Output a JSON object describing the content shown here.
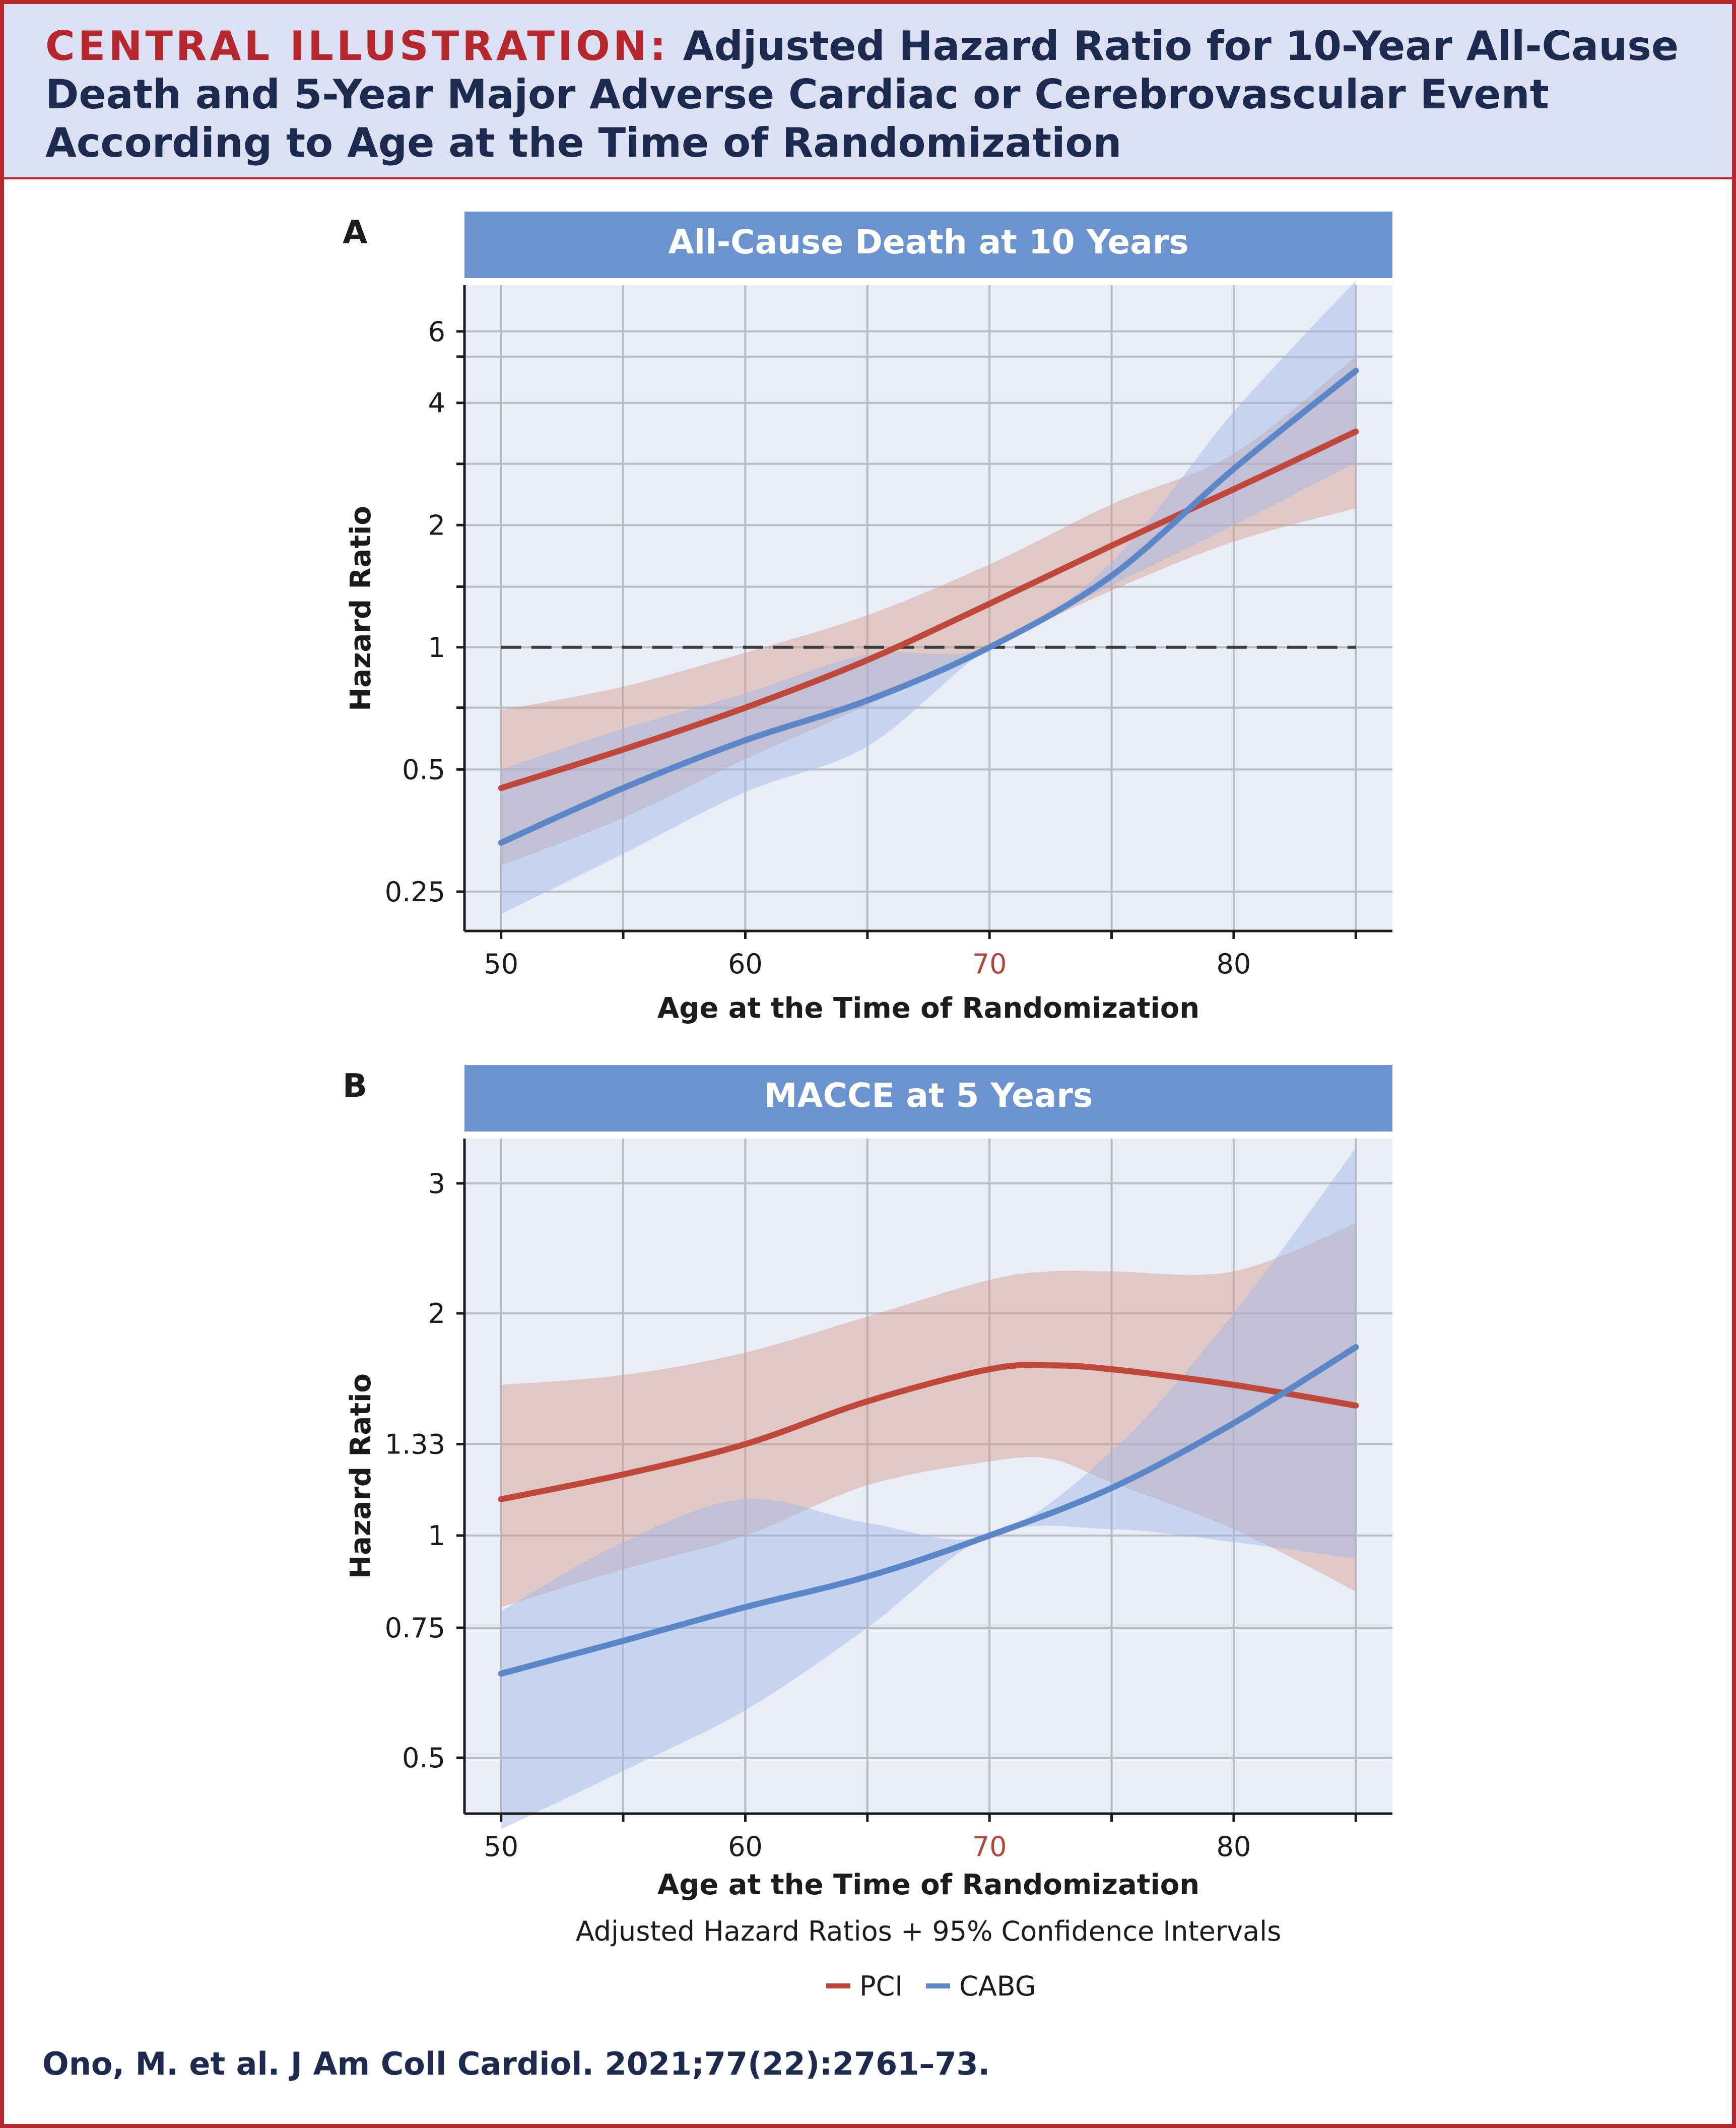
{
  "header": {
    "lead": "CENTRAL ILLUSTRATION:",
    "title": "Adjusted Hazard Ratio for 10-Year All-Cause Death and 5-Year Major Adverse Cardiac or Cerebrovascular Event According to Age at the Time of Randomization"
  },
  "citation": "Ono, M. et al. J Am Coll Cardiol. 2021;77(22):2761–73.",
  "colors": {
    "pci": "#c0483b",
    "cabg": "#5b86c8",
    "accent_red": "#b5262d",
    "navy": "#1b2a4e",
    "panel_bg": "#e9edf7",
    "band": "#6b93cf"
  },
  "note": "Adjusted Hazard Ratios + 95% Confidence Intervals",
  "legend": {
    "pci": "PCI",
    "cabg": "CABG"
  },
  "chart_data": [
    {
      "panel": "A",
      "type": "line",
      "title": "All-Cause Death at 10 Years",
      "xlabel": "Age at the Time of Randomization",
      "ylabel": "Hazard Ratio",
      "y_scale": "log",
      "xlim": [
        48.5,
        86.5
      ],
      "ylim": [
        0.2,
        7.8
      ],
      "x_ticks": [
        "50",
        "60",
        "70",
        "80"
      ],
      "x_highlight": "70",
      "y_ticks": [
        "0.25",
        "0.5",
        "1",
        "2",
        "4",
        "6"
      ],
      "reference_line": 1,
      "series": [
        {
          "name": "PCI",
          "x": [
            50,
            55,
            60,
            65,
            70,
            75,
            80,
            85
          ],
          "y": [
            0.45,
            0.56,
            0.71,
            0.93,
            1.28,
            1.78,
            2.45,
            3.4
          ],
          "lower": [
            0.29,
            0.38,
            0.53,
            0.72,
            1.0,
            1.38,
            1.82,
            2.2
          ],
          "upper": [
            0.7,
            0.8,
            0.97,
            1.2,
            1.6,
            2.25,
            3.0,
            5.2
          ]
        },
        {
          "name": "CABG",
          "x": [
            50,
            55,
            60,
            65,
            70,
            75,
            80,
            85
          ],
          "y": [
            0.33,
            0.45,
            0.59,
            0.74,
            1.0,
            1.5,
            2.75,
            4.8
          ],
          "lower": [
            0.22,
            0.31,
            0.44,
            0.57,
            1.0,
            1.42,
            2.0,
            2.85
          ],
          "upper": [
            0.5,
            0.63,
            0.77,
            0.96,
            1.0,
            1.62,
            3.8,
            8.0
          ]
        }
      ]
    },
    {
      "panel": "B",
      "type": "line",
      "title": "MACCE at 5 Years",
      "xlabel": "Age at the Time of Randomization",
      "ylabel": "Hazard Ratio",
      "y_scale": "log",
      "xlim": [
        48.5,
        86.5
      ],
      "ylim": [
        0.42,
        3.45
      ],
      "x_ticks": [
        "50",
        "60",
        "70",
        "80"
      ],
      "x_highlight": "70",
      "y_ticks": [
        "0.5",
        "0.75",
        "1",
        "1.33",
        "2",
        "3"
      ],
      "series": [
        {
          "name": "PCI",
          "x": [
            50,
            55,
            60,
            65,
            70,
            72.5,
            75,
            80,
            85
          ],
          "y": [
            1.12,
            1.21,
            1.33,
            1.52,
            1.68,
            1.7,
            1.68,
            1.6,
            1.5
          ],
          "lower": [
            0.8,
            0.9,
            1.0,
            1.17,
            1.26,
            1.27,
            1.18,
            1.02,
            0.84
          ],
          "upper": [
            1.6,
            1.65,
            1.77,
            1.98,
            2.22,
            2.28,
            2.28,
            2.28,
            2.65
          ]
        },
        {
          "name": "CABG",
          "x": [
            50,
            55,
            60,
            65,
            70,
            75,
            80,
            85
          ],
          "y": [
            0.65,
            0.72,
            0.8,
            0.88,
            1.0,
            1.16,
            1.42,
            1.8
          ],
          "lower": [
            0.4,
            0.48,
            0.58,
            0.75,
            1.0,
            1.02,
            0.98,
            0.93
          ],
          "upper": [
            0.79,
            0.98,
            1.12,
            1.04,
            1.0,
            1.3,
            2.0,
            3.35
          ]
        }
      ]
    }
  ]
}
